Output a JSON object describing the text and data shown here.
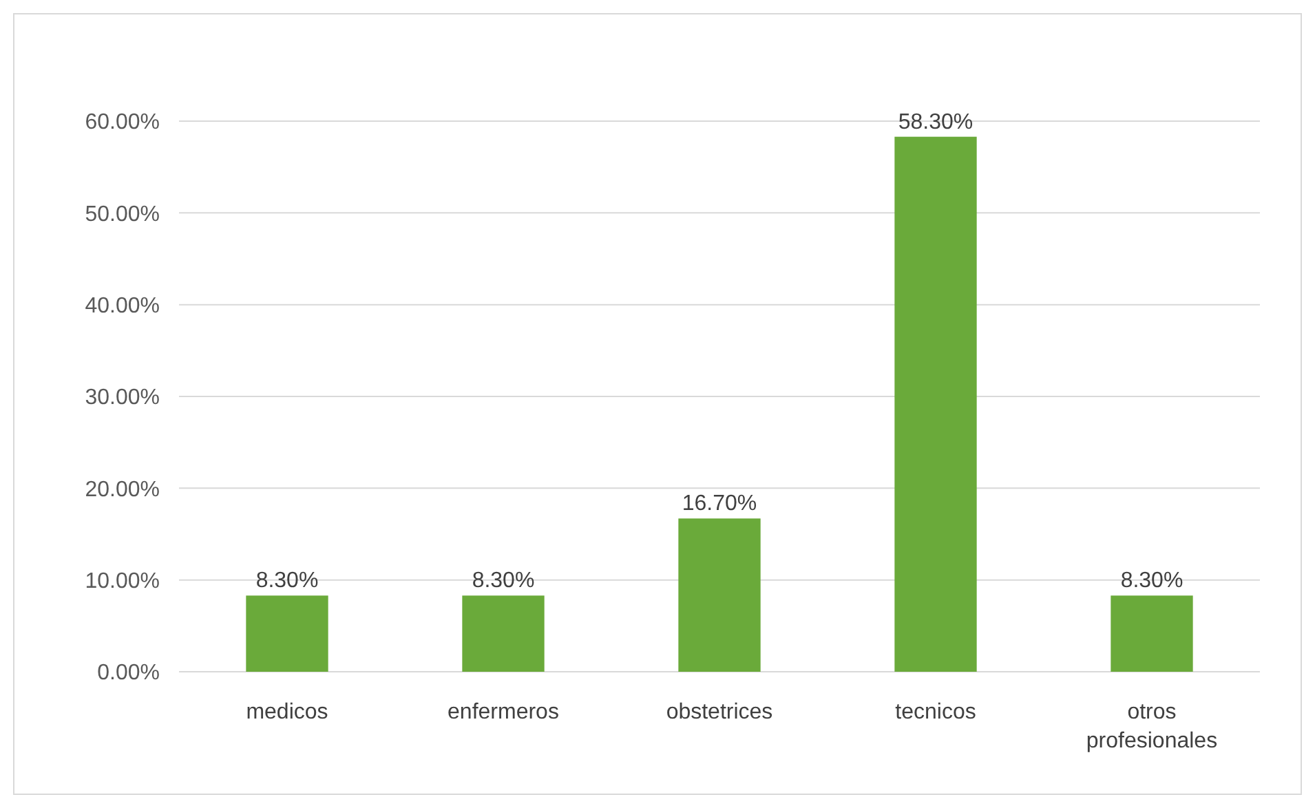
{
  "chart_data": {
    "type": "bar",
    "categories": [
      "medicos",
      "enfermeros",
      "obstetrices",
      "tecnicos",
      "otros profesionales"
    ],
    "values": [
      8.3,
      8.3,
      16.7,
      58.3,
      8.3
    ],
    "value_labels": [
      "8.30%",
      "8.30%",
      "16.70%",
      "58.30%",
      "8.30%"
    ],
    "color": "#6aaa3a",
    "ylim": [
      0,
      60
    ],
    "yticks": [
      {
        "value": 0,
        "label": "0.00%"
      },
      {
        "value": 10,
        "label": "10.00%"
      },
      {
        "value": 20,
        "label": "20.00%"
      },
      {
        "value": 30,
        "label": "30.00%"
      },
      {
        "value": 40,
        "label": "40.00%"
      },
      {
        "value": 50,
        "label": "50.00%"
      },
      {
        "value": 60,
        "label": "60.00%"
      }
    ],
    "grid": "y"
  }
}
